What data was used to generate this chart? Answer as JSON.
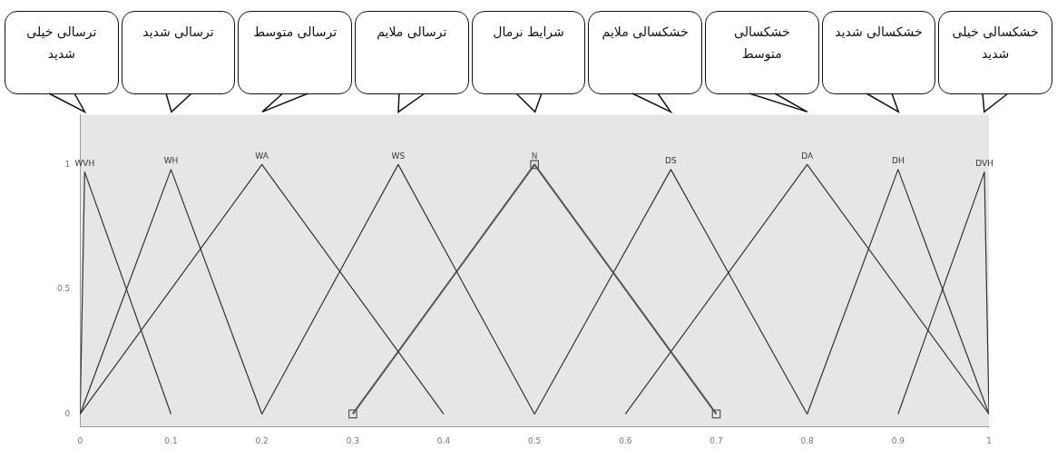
{
  "chart_data": {
    "type": "line",
    "xlim": [
      0,
      1
    ],
    "ylim": [
      -0.05,
      1.2
    ],
    "xticks": [
      0,
      0.1,
      0.2,
      0.3,
      0.4,
      0.5,
      0.6,
      0.7,
      0.8,
      0.9,
      1
    ],
    "yticks": [
      0,
      0.5,
      1
    ],
    "grid": false,
    "legend": false,
    "marker": "none",
    "line_style": "solid",
    "series": [
      {
        "name": "WVH",
        "color": "#333333",
        "x": [
          0,
          0.005,
          0.1
        ],
        "values": [
          0,
          0.97,
          0
        ]
      },
      {
        "name": "WH",
        "color": "#333333",
        "x": [
          0,
          0.1,
          0.2
        ],
        "values": [
          0,
          0.98,
          0
        ]
      },
      {
        "name": "WA",
        "color": "#333333",
        "x": [
          0,
          0.2,
          0.4
        ],
        "values": [
          0,
          1,
          0
        ]
      },
      {
        "name": "WS",
        "color": "#333333",
        "x": [
          0.2,
          0.35,
          0.5
        ],
        "values": [
          0,
          1,
          0
        ]
      },
      {
        "name": "N",
        "color": "#555555",
        "marker": "square",
        "x": [
          0.3,
          0.5,
          0.7
        ],
        "values": [
          0,
          1,
          0
        ]
      },
      {
        "name": "DS",
        "color": "#333333",
        "x": [
          0.5,
          0.65,
          0.8
        ],
        "values": [
          0,
          0.98,
          0
        ]
      },
      {
        "name": "DA",
        "color": "#333333",
        "x": [
          0.6,
          0.8,
          1
        ],
        "values": [
          0,
          1,
          0
        ]
      },
      {
        "name": "DH",
        "color": "#333333",
        "x": [
          0.8,
          0.9,
          1
        ],
        "values": [
          0,
          0.98,
          0
        ]
      },
      {
        "name": "DVH",
        "color": "#333333",
        "x": [
          0.9,
          0.995,
          1
        ],
        "values": [
          0,
          0.97,
          0
        ]
      }
    ],
    "annotations": [
      "ترسالی خیلی شدید",
      "ترسالی شدید",
      "ترسالی متوسط",
      "ترسالی ملایم",
      "شرایط نرمال",
      "خشکسالی ملایم",
      "خشکسالی متوسط",
      "خشکسالی شدید",
      "خشکسالی خیلی شدید"
    ]
  }
}
